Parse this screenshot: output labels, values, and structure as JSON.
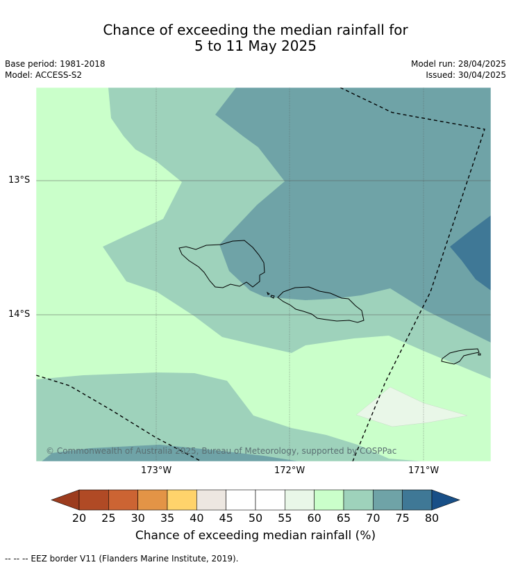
{
  "title_line1": "Chance of exceeding the median rainfall for",
  "title_line2": "5 to 11 May 2025",
  "base_period": "Base period: 1981-2018",
  "model": "Model: ACCESS-S2",
  "model_run": "Model run: 28/04/2025",
  "issued": "Issued: 30/04/2025",
  "lat_ticks": [
    "13°S",
    "14°S"
  ],
  "lon_ticks": [
    "173°W",
    "172°W",
    "171°W"
  ],
  "copyright": "© Commonwealth of Australia 2025, Bureau of Meteorology, supported by COSPPac",
  "colorbar": {
    "labels": [
      "20",
      "25",
      "30",
      "35",
      "40",
      "45",
      "50",
      "55",
      "60",
      "65",
      "70",
      "75",
      "80"
    ],
    "colors": [
      "#b04a25",
      "#cc6433",
      "#e39446",
      "#ffd36b",
      "#ede7e1",
      "#ffffff",
      "#ffffff",
      "#e9f7e8",
      "#caffca",
      "#9ed2bb",
      "#6fa3a7",
      "#3f7896"
    ],
    "under_color": "#9c3c1e",
    "over_color": "#184f87",
    "title": "Chance of exceeding median rainfall (%)"
  },
  "footnote": "--  --  -- EEZ border V11 (Flanders Marine Institute, 2019)."
}
